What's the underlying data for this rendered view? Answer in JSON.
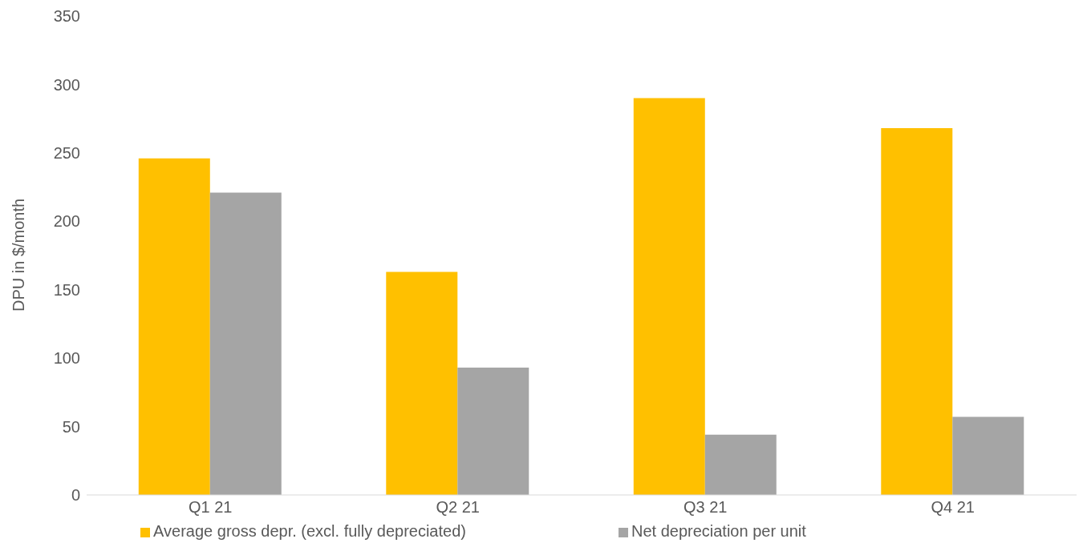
{
  "chart_data": {
    "type": "bar",
    "ylabel": "DPU in $/month",
    "categories": [
      "Q1 21",
      "Q2 21",
      "Q3 21",
      "Q4 21"
    ],
    "series": [
      {
        "name": "Average gross depr. (excl. fully depreciated)",
        "color": "#ffc000",
        "values": [
          246,
          163,
          290,
          268
        ]
      },
      {
        "name": "Net depreciation per unit",
        "color": "#a5a5a5",
        "values": [
          221,
          93,
          44,
          57
        ]
      }
    ],
    "ylim": [
      0,
      350
    ],
    "yticks": [
      0,
      50,
      100,
      150,
      200,
      250,
      300,
      350
    ],
    "grid": false,
    "legend": "bottom"
  }
}
